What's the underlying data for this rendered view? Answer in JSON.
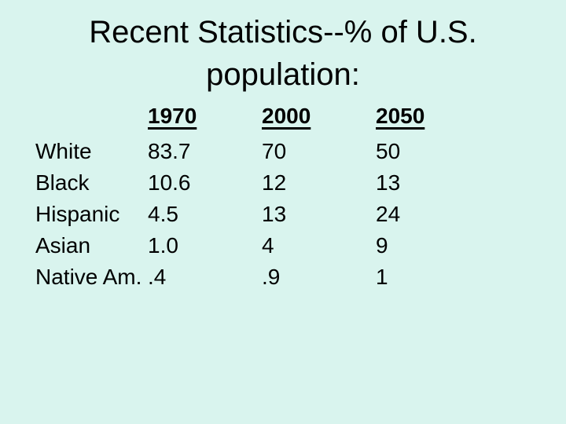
{
  "theme": {
    "background": "#d9f4ee",
    "text": "#000000"
  },
  "title": {
    "line1": "Recent Statistics--% of U.S.",
    "line2": "population:"
  },
  "table": {
    "columns": [
      "1970",
      "2000",
      "2050"
    ],
    "rows": [
      {
        "label": "White",
        "v1970": "83.7",
        "v2000": "70",
        "v2050": "50"
      },
      {
        "label": "Black",
        "v1970": "10.6",
        "v2000": "12",
        "v2050": "13"
      },
      {
        "label": "Hispanic",
        "v1970": "4.5",
        "v2000": "13",
        "v2050": "24"
      },
      {
        "label": "Asian",
        "v1970": "1.0",
        "v2000": "4",
        "v2050": "9"
      },
      {
        "label": "Native Am.",
        "v1970": ".4",
        "v2000": ".9",
        "v2050": "1"
      }
    ]
  },
  "chart_data": {
    "type": "table",
    "title": "Recent Statistics--% of U.S. population:",
    "categories": [
      "White",
      "Black",
      "Hispanic",
      "Asian",
      "Native Am."
    ],
    "series": [
      {
        "name": "1970",
        "values": [
          83.7,
          10.6,
          4.5,
          1.0,
          0.4
        ]
      },
      {
        "name": "2000",
        "values": [
          70,
          12,
          13,
          4,
          0.9
        ]
      },
      {
        "name": "2050",
        "values": [
          50,
          13,
          24,
          9,
          1
        ]
      }
    ]
  }
}
